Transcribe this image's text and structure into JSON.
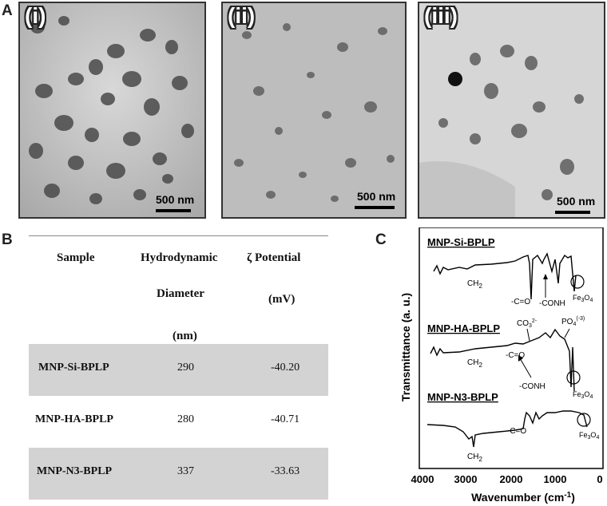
{
  "panel_a": {
    "letter": "A",
    "images": [
      {
        "label": "(i)",
        "scale": "500 nm"
      },
      {
        "label": "(ii)",
        "scale": "500 nm"
      },
      {
        "label": "(iii)",
        "scale": "500 nm"
      }
    ]
  },
  "panel_b": {
    "letter": "B",
    "headers": {
      "sample": "Sample",
      "diam_1": "Hydrodynamic",
      "diam_2": "Diameter",
      "diam_3": "(nm)",
      "zeta_1": "ζ Potential",
      "zeta_2": "(mV)"
    },
    "rows": [
      {
        "sample": "MNP-Si-BPLP",
        "diameter": "290",
        "zeta": "-40.20"
      },
      {
        "sample": "MNP-HA-BPLP",
        "diameter": "280",
        "zeta": "-40.71"
      },
      {
        "sample": "MNP-N3-BPLP",
        "diameter": "337",
        "zeta": "-33.63"
      }
    ]
  },
  "panel_c": {
    "letter": "C",
    "ylabel": "Transmittance (a. u.)",
    "xlabel": "Wavenumber (cm",
    "xlabel_sup": "-1",
    "xlabel_end": ")",
    "xticks": [
      "4000",
      "3000",
      "2000",
      "1000",
      "0"
    ],
    "spectra": [
      {
        "name": "MNP-Si-BPLP",
        "labels": [
          "CH",
          "-C=O",
          "-CONH",
          "Fe"
        ]
      },
      {
        "name": "MNP-HA-BPLP",
        "labels": [
          "CH",
          "-C=O",
          "-CONH",
          "CO",
          "PO",
          "Fe"
        ]
      },
      {
        "name": "MNP-N3-BPLP",
        "labels": [
          "CH",
          "-C=O",
          "Fe"
        ]
      }
    ],
    "sub_2": "2",
    "sub_3": "3",
    "sub_4": "4",
    "sup_co3": "2-",
    "sup_po4": "(-3)",
    "o4": "O"
  }
}
